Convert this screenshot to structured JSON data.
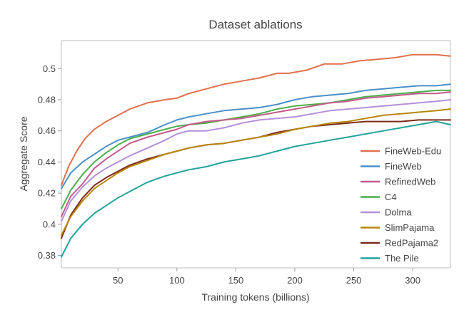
{
  "chart_data": {
    "type": "line",
    "title": "Dataset ablations",
    "xlabel": "Training tokens (billions)",
    "ylabel": "Aggregate Score",
    "xlim": [
      2,
      332
    ],
    "ylim": [
      0.372,
      0.518
    ],
    "xticks": [
      50,
      100,
      150,
      200,
      250,
      300
    ],
    "xtick_labels": [
      "50",
      "100",
      "150",
      "200",
      "250",
      "300"
    ],
    "yticks": [
      0.38,
      0.4,
      0.42,
      0.44,
      0.46,
      0.48,
      0.5
    ],
    "ytick_labels": [
      "0.38",
      "0.4",
      "0.42",
      "0.44",
      "0.46",
      "0.48",
      "0.5"
    ],
    "grid": false,
    "legend_position": "bottom-right",
    "series": [
      {
        "name": "FineWeb-Edu",
        "color": "#e0714e",
        "x": [
          2,
          8,
          15,
          22,
          30,
          40,
          50,
          60,
          75,
          90,
          100,
          110,
          125,
          140,
          155,
          170,
          185,
          195,
          210,
          225,
          240,
          255,
          270,
          285,
          300,
          310,
          320,
          332
        ],
        "y": [
          0.425,
          0.437,
          0.447,
          0.455,
          0.461,
          0.466,
          0.47,
          0.474,
          0.478,
          0.48,
          0.481,
          0.484,
          0.487,
          0.49,
          0.492,
          0.494,
          0.497,
          0.497,
          0.499,
          0.503,
          0.503,
          0.505,
          0.506,
          0.507,
          0.509,
          0.509,
          0.509,
          0.508
        ]
      },
      {
        "name": "FineWeb",
        "color": "#4a90c9",
        "x": [
          2,
          10,
          20,
          30,
          40,
          50,
          60,
          75,
          90,
          100,
          110,
          125,
          140,
          155,
          170,
          185,
          200,
          215,
          230,
          245,
          260,
          275,
          290,
          305,
          320,
          332
        ],
        "y": [
          0.423,
          0.433,
          0.44,
          0.445,
          0.45,
          0.454,
          0.456,
          0.459,
          0.464,
          0.467,
          0.469,
          0.471,
          0.473,
          0.474,
          0.475,
          0.477,
          0.48,
          0.482,
          0.483,
          0.484,
          0.486,
          0.487,
          0.488,
          0.489,
          0.489,
          0.49
        ]
      },
      {
        "name": "RefinedWeb",
        "color": "#c45a8a",
        "x": [
          2,
          10,
          20,
          30,
          40,
          50,
          60,
          75,
          90,
          100,
          110,
          125,
          140,
          155,
          170,
          185,
          200,
          215,
          230,
          245,
          260,
          275,
          290,
          305,
          320,
          332
        ],
        "y": [
          0.405,
          0.418,
          0.426,
          0.436,
          0.442,
          0.447,
          0.452,
          0.456,
          0.459,
          0.461,
          0.464,
          0.466,
          0.467,
          0.468,
          0.47,
          0.472,
          0.474,
          0.476,
          0.478,
          0.479,
          0.481,
          0.482,
          0.483,
          0.484,
          0.484,
          0.485
        ]
      },
      {
        "name": "C4",
        "color": "#4aae4a",
        "x": [
          2,
          10,
          20,
          30,
          40,
          50,
          60,
          75,
          90,
          100,
          110,
          125,
          140,
          155,
          170,
          185,
          200,
          215,
          230,
          245,
          260,
          275,
          290,
          305,
          320,
          332
        ],
        "y": [
          0.41,
          0.422,
          0.432,
          0.44,
          0.446,
          0.451,
          0.455,
          0.458,
          0.461,
          0.463,
          0.464,
          0.465,
          0.467,
          0.469,
          0.471,
          0.474,
          0.476,
          0.477,
          0.478,
          0.48,
          0.482,
          0.483,
          0.484,
          0.485,
          0.486,
          0.486
        ]
      },
      {
        "name": "Dolma",
        "color": "#b48fdc",
        "x": [
          2,
          10,
          20,
          30,
          40,
          50,
          60,
          75,
          90,
          100,
          110,
          125,
          140,
          155,
          170,
          185,
          200,
          215,
          230,
          245,
          260,
          275,
          290,
          305,
          320,
          332
        ],
        "y": [
          0.402,
          0.415,
          0.424,
          0.431,
          0.436,
          0.44,
          0.444,
          0.449,
          0.454,
          0.458,
          0.46,
          0.46,
          0.462,
          0.465,
          0.467,
          0.468,
          0.469,
          0.471,
          0.473,
          0.474,
          0.475,
          0.476,
          0.477,
          0.478,
          0.479,
          0.48
        ]
      },
      {
        "name": "SlimPajama",
        "color": "#b8860b",
        "x": [
          2,
          10,
          20,
          30,
          40,
          50,
          60,
          75,
          90,
          100,
          110,
          125,
          140,
          155,
          170,
          185,
          200,
          215,
          230,
          245,
          260,
          275,
          290,
          305,
          320,
          332
        ],
        "y": [
          0.393,
          0.405,
          0.415,
          0.423,
          0.428,
          0.433,
          0.437,
          0.441,
          0.445,
          0.447,
          0.449,
          0.451,
          0.452,
          0.454,
          0.456,
          0.458,
          0.461,
          0.463,
          0.465,
          0.466,
          0.468,
          0.47,
          0.471,
          0.472,
          0.473,
          0.474
        ]
      },
      {
        "name": "RedPajama2",
        "color": "#7b2a1a",
        "x": [
          2,
          10,
          20,
          30,
          40,
          50,
          60,
          75,
          90,
          100,
          110,
          125,
          140,
          155,
          170,
          185,
          200,
          215,
          230,
          245,
          260,
          275,
          290,
          305,
          320,
          332
        ],
        "y": [
          0.391,
          0.406,
          0.417,
          0.425,
          0.43,
          0.434,
          0.438,
          0.442,
          0.445,
          0.447,
          0.449,
          0.451,
          0.452,
          0.454,
          0.456,
          0.459,
          0.461,
          0.463,
          0.464,
          0.465,
          0.466,
          0.466,
          0.466,
          0.467,
          0.467,
          0.467
        ]
      },
      {
        "name": "The Pile",
        "color": "#21a39a",
        "x": [
          2,
          10,
          20,
          30,
          40,
          50,
          60,
          75,
          90,
          100,
          110,
          125,
          140,
          155,
          170,
          185,
          200,
          215,
          230,
          245,
          260,
          275,
          290,
          305,
          320,
          332
        ],
        "y": [
          0.379,
          0.391,
          0.4,
          0.407,
          0.412,
          0.417,
          0.421,
          0.427,
          0.431,
          0.433,
          0.435,
          0.437,
          0.44,
          0.442,
          0.444,
          0.447,
          0.45,
          0.452,
          0.454,
          0.456,
          0.458,
          0.46,
          0.462,
          0.464,
          0.466,
          0.464
        ]
      }
    ]
  }
}
